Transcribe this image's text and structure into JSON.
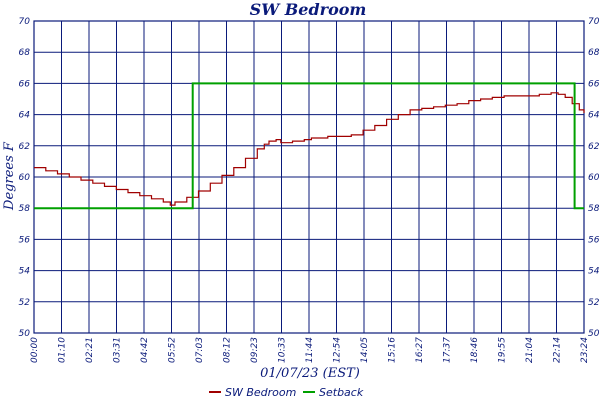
{
  "chart_data": {
    "type": "line",
    "title": "SW Bedroom",
    "xlabel": "01/07/23 (EST)",
    "ylabel": "Degrees F",
    "ylim": [
      50,
      70
    ],
    "y_ticks": [
      "50",
      "52",
      "54",
      "56",
      "58",
      "60",
      "62",
      "64",
      "66",
      "68",
      "70"
    ],
    "x_ticks": [
      "00:00",
      "01:10",
      "02:21",
      "03:31",
      "04:42",
      "05:52",
      "07:03",
      "08:12",
      "09:23",
      "10:33",
      "11:44",
      "12:54",
      "14:05",
      "15:16",
      "16:27",
      "17:37",
      "18:46",
      "19:55",
      "21:04",
      "22:14",
      "23:24"
    ],
    "grid": true,
    "legend_position": "bottom-center",
    "series": [
      {
        "name": "SW Bedroom",
        "color": "#a00000",
        "x_hours": [
          0,
          0.5,
          1.0,
          1.5,
          2.0,
          2.5,
          3.0,
          3.5,
          4.0,
          4.5,
          5.0,
          5.5,
          5.8,
          6.0,
          6.5,
          7.0,
          7.5,
          8.0,
          8.5,
          9.0,
          9.5,
          9.8,
          10.0,
          10.3,
          10.5,
          11.0,
          11.5,
          11.8,
          12.0,
          12.5,
          13.0,
          13.5,
          14.0,
          14.5,
          15.0,
          15.5,
          16.0,
          16.5,
          17.0,
          17.5,
          18.0,
          18.5,
          19.0,
          19.5,
          20.0,
          20.5,
          21.0,
          21.5,
          22.0,
          22.3,
          22.6,
          22.9,
          23.2,
          23.4
        ],
        "values": [
          60.6,
          60.4,
          60.2,
          60.0,
          59.8,
          59.6,
          59.4,
          59.2,
          59.0,
          58.8,
          58.6,
          58.4,
          58.2,
          58.4,
          58.7,
          59.1,
          59.6,
          60.1,
          60.6,
          61.2,
          61.8,
          62.1,
          62.3,
          62.4,
          62.2,
          62.3,
          62.4,
          62.5,
          62.5,
          62.6,
          62.6,
          62.7,
          63.0,
          63.3,
          63.7,
          64.0,
          64.3,
          64.4,
          64.5,
          64.6,
          64.7,
          64.9,
          65.0,
          65.1,
          65.2,
          65.2,
          65.2,
          65.3,
          65.4,
          65.3,
          65.1,
          64.7,
          64.3,
          64.1
        ]
      },
      {
        "name": "Setback",
        "color": "#00a000",
        "x_hours": [
          0,
          6.75,
          6.75,
          23.0,
          23.0,
          23.4
        ],
        "values": [
          58,
          58,
          66,
          66,
          58,
          58
        ]
      }
    ]
  }
}
